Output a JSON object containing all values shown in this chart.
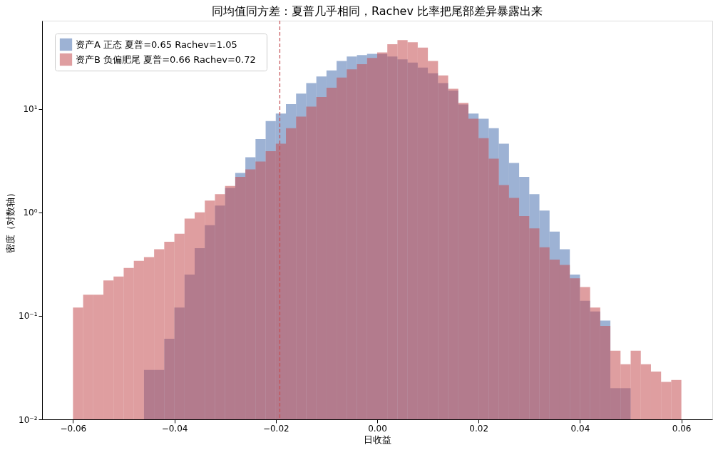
{
  "chart_data": {
    "type": "histogram",
    "title": "同均值同方差：夏普几乎相同，Rachev 比率把尾部差异暴露出来",
    "xlabel": "日收益",
    "ylabel": "密度（对数轴）",
    "bins": [
      -0.06,
      -0.058,
      -0.056,
      -0.054,
      -0.052,
      -0.05,
      -0.048,
      -0.046,
      -0.044,
      -0.042,
      -0.04,
      -0.038,
      -0.036,
      -0.034,
      -0.032,
      -0.03,
      -0.028,
      -0.026,
      -0.024,
      -0.022,
      -0.02,
      -0.018,
      -0.016,
      -0.014,
      -0.012,
      -0.01,
      -0.008,
      -0.006,
      -0.004,
      -0.002,
      0.0,
      0.002,
      0.004,
      0.006,
      0.008,
      0.01,
      0.012,
      0.014,
      0.016,
      0.018,
      0.02,
      0.022,
      0.024,
      0.026,
      0.028,
      0.03,
      0.032,
      0.034,
      0.036,
      0.038,
      0.04,
      0.042,
      0.044,
      0.046,
      0.048,
      0.05,
      0.052,
      0.054,
      0.056,
      0.058,
      0.06
    ],
    "series": [
      {
        "name": "资产A 正态  夏普=0.65  Rachev=1.05",
        "color": "#4c72b0",
        "values": [
          null,
          null,
          null,
          null,
          null,
          null,
          null,
          0.03,
          0.03,
          0.06,
          0.12,
          0.25,
          0.45,
          0.75,
          1.16,
          1.72,
          2.4,
          3.4,
          5.1,
          7.6,
          9.0,
          11.1,
          14,
          17.7,
          20.5,
          23.5,
          29,
          32,
          33,
          34,
          34,
          32,
          30,
          28,
          25,
          22,
          17.7,
          15,
          11,
          9,
          8.0,
          6.5,
          4.6,
          3.0,
          2.2,
          1.5,
          1.04,
          0.65,
          0.44,
          0.25,
          0.14,
          0.11,
          0.09,
          0.02,
          0.02,
          null,
          null,
          null,
          null,
          null
        ]
      },
      {
        "name": "资产B 负偏肥尾  夏普=0.66  Rachev=0.72",
        "color": "#c44e52",
        "values": [
          0.12,
          0.16,
          0.16,
          0.22,
          0.24,
          0.29,
          0.34,
          0.37,
          0.44,
          0.52,
          0.62,
          0.87,
          1.0,
          1.3,
          1.5,
          1.8,
          2.2,
          2.6,
          3.1,
          3.9,
          4.6,
          6.5,
          8.4,
          10.5,
          13,
          16,
          20,
          24,
          27,
          31,
          35,
          42,
          46,
          44,
          39,
          29,
          21,
          15.6,
          11.4,
          8.0,
          5.2,
          3.3,
          1.83,
          1.38,
          0.92,
          0.7,
          0.46,
          0.35,
          0.31,
          0.23,
          0.19,
          0.12,
          0.08,
          0.046,
          0.034,
          0.046,
          0.034,
          0.029,
          0.023,
          0.024
        ]
      }
    ],
    "xlim": [
      -0.0661,
      0.0661
    ],
    "xticks": [
      {
        "value": -0.06,
        "label": "−0.06"
      },
      {
        "value": -0.04,
        "label": "−0.04"
      },
      {
        "value": -0.02,
        "label": "−0.02"
      },
      {
        "value": 0.0,
        "label": "0.00"
      },
      {
        "value": 0.02,
        "label": "0.02"
      },
      {
        "value": 0.04,
        "label": "0.04"
      },
      {
        "value": 0.06,
        "label": "0.06"
      }
    ],
    "ylim": [
      0.01,
      71
    ],
    "log": "y",
    "yticks": [
      {
        "value": 0.01,
        "label": "10⁻²"
      },
      {
        "value": 0.1,
        "label": "10⁻¹"
      },
      {
        "value": 1,
        "label": "10⁰"
      },
      {
        "value": 10,
        "label": "10¹"
      }
    ],
    "ref_lines": [
      {
        "axis": "x",
        "value": -0.0192,
        "color": "#c44e52",
        "line_style": "dashed"
      }
    ],
    "legend": "top left",
    "grid": false
  }
}
